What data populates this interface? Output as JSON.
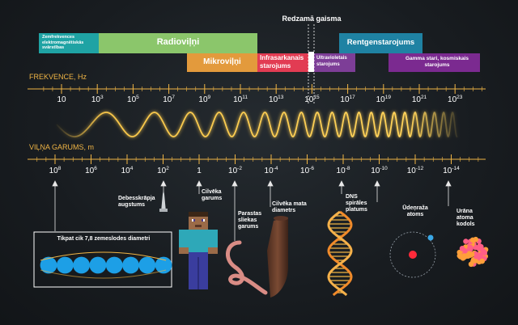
{
  "bands": [
    {
      "id": "zemfrekvences",
      "label": "Zemfrekvences elektromagnētiskās svārstības",
      "color": "#1fa3a4",
      "text_color": "#ffffff"
    },
    {
      "id": "radioviļņi",
      "label": "Radioviļņi",
      "color": "#8bc66b",
      "text_color": "#ffffff"
    },
    {
      "id": "mikroviļņi",
      "label": "Mikroviļņi",
      "color": "#e39a3c",
      "text_color": "#ffffff"
    },
    {
      "id": "infrasarkanais",
      "label": "Infrasarkanais starojums",
      "color": "#e23c53",
      "text_color": "#ffffff"
    },
    {
      "id": "ultravioletais",
      "label": "Ultravioletais starojums",
      "color": "#7d3e97",
      "text_color": "#ffffff"
    },
    {
      "id": "rentgena",
      "label": "Rentgenstarojums",
      "color": "#1f82a3",
      "text_color": "#ffffff"
    },
    {
      "id": "gamma",
      "label": "Gamma stari, kosmiskais starojums",
      "color": "#7b2a90",
      "text_color": "#ffffff"
    }
  ],
  "visible_light_label": "Redzamā gaisma",
  "frequency": {
    "axis_label": "FREKVENCE, Hz",
    "ticks": [
      {
        "base": "10",
        "exp": ""
      },
      {
        "base": "10",
        "exp": "3"
      },
      {
        "base": "10",
        "exp": "5"
      },
      {
        "base": "10",
        "exp": "7"
      },
      {
        "base": "10",
        "exp": "9"
      },
      {
        "base": "10",
        "exp": "11"
      },
      {
        "base": "10",
        "exp": "13"
      },
      {
        "base": "10",
        "exp": "15"
      },
      {
        "base": "10",
        "exp": "17"
      },
      {
        "base": "10",
        "exp": "19"
      },
      {
        "base": "10",
        "exp": "21"
      },
      {
        "base": "10",
        "exp": "23"
      }
    ]
  },
  "wavelength": {
    "axis_label": "VIĻŅA GARUMS, m",
    "ticks": [
      {
        "base": "10",
        "exp": "8"
      },
      {
        "base": "10",
        "exp": "6"
      },
      {
        "base": "10",
        "exp": "4"
      },
      {
        "base": "10",
        "exp": "2"
      },
      {
        "base": "1",
        "exp": ""
      },
      {
        "base": "10",
        "exp": "-2"
      },
      {
        "base": "10",
        "exp": "-4"
      },
      {
        "base": "10",
        "exp": "-6"
      },
      {
        "base": "10",
        "exp": "-8"
      },
      {
        "base": "10",
        "exp": "-10"
      },
      {
        "base": "10",
        "exp": "-12"
      },
      {
        "base": "10",
        "exp": "-14"
      }
    ]
  },
  "objects": {
    "earth": "Tikpat cik 7,8 zemeslodes diametri",
    "skyscraper": "Debesskrāpja augstums",
    "human": "Cilvēka garums",
    "worm": "Parastas sliekas garums",
    "hair": "Cilvēka mata diametrs",
    "dna": "DNS spirāles platums",
    "hydrogen": "Ūdeņraža atoms",
    "uranium": "Urāna atoma kodols"
  },
  "colors": {
    "axis": "#f0b545",
    "wave": "#f7c64a",
    "text": "#ffffff"
  }
}
